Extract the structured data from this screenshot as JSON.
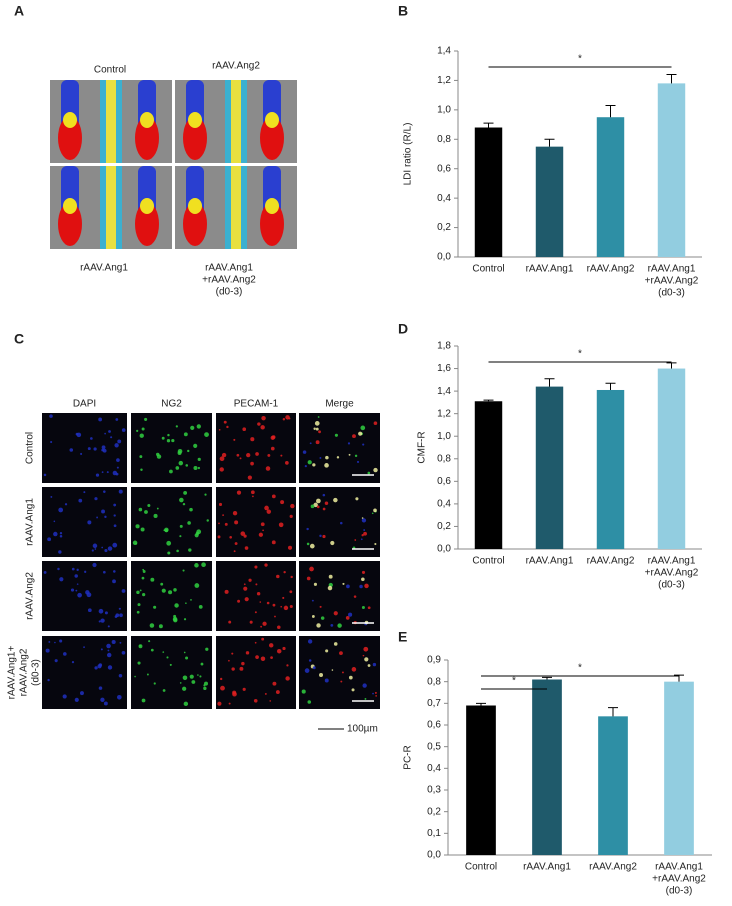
{
  "panel_a": {
    "panel": "A",
    "labels": [
      "Control",
      "rAAV.Ang2",
      "rAAV.Ang1",
      [
        "rAAV.Ang1",
        "+rAAV.Ang2",
        "(d0-3)"
      ]
    ]
  },
  "panel_c": {
    "panel": "C",
    "columns": [
      "DAPI",
      "NG2",
      "PECAM-1",
      "Merge"
    ],
    "rows": [
      "Control",
      "rAAV.Ang1",
      "rAAV.Ang2",
      [
        "rAAV.Ang1+",
        "rAAV.Ang2",
        "(d0-3)"
      ]
    ],
    "scale_bar": "100µm"
  },
  "chart_data": [
    {
      "type": "bar",
      "panel": "B",
      "ylabel": "LDI ratio (R/L)",
      "categories": [
        [
          "Control"
        ],
        [
          "rAAV.Ang1"
        ],
        [
          "rAAV.Ang2"
        ],
        [
          "rAAV.Ang1",
          "+rAAV.Ang2",
          "(d0-3)"
        ]
      ],
      "values": [
        0.88,
        0.75,
        0.95,
        1.18
      ],
      "errors": [
        0.03,
        0.05,
        0.08,
        0.06
      ],
      "colors": [
        "#000000",
        "#1f5a6b",
        "#2e8fa5",
        "#92cde0"
      ],
      "ylim": [
        0,
        1.4
      ],
      "yticks": [
        {
          "value": 0,
          "label": "0,0"
        },
        {
          "value": 0.2,
          "label": "0,2"
        },
        {
          "value": 0.4,
          "label": "0,4"
        },
        {
          "value": 0.6,
          "label": "0,6"
        },
        {
          "value": 0.8,
          "label": "0,8"
        },
        {
          "value": 1.0,
          "label": "1,0"
        },
        {
          "value": 1.2,
          "label": "1,2"
        },
        {
          "value": 1.4,
          "label": "1,4"
        }
      ],
      "significance": [
        {
          "label": "*",
          "span": [
            0,
            3
          ]
        }
      ]
    },
    {
      "type": "bar",
      "panel": "D",
      "ylabel": "CMF-R",
      "categories": [
        [
          "Control"
        ],
        [
          "rAAV.Ang1"
        ],
        [
          "rAAV.Ang2"
        ],
        [
          "rAAV.Ang1",
          "+rAAV.Ang2",
          "(d0-3)"
        ]
      ],
      "values": [
        1.31,
        1.44,
        1.41,
        1.6
      ],
      "errors": [
        0.01,
        0.07,
        0.06,
        0.05
      ],
      "colors": [
        "#000000",
        "#1f5a6b",
        "#2e8fa5",
        "#92cde0"
      ],
      "ylim": [
        0,
        1.8
      ],
      "yticks": [
        {
          "value": 0,
          "label": "0,0"
        },
        {
          "value": 0.2,
          "label": "0,2"
        },
        {
          "value": 0.4,
          "label": "0,4"
        },
        {
          "value": 0.6,
          "label": "0,6"
        },
        {
          "value": 0.8,
          "label": "0,8"
        },
        {
          "value": 1.0,
          "label": "1,0"
        },
        {
          "value": 1.2,
          "label": "1,2"
        },
        {
          "value": 1.4,
          "label": "1,4"
        },
        {
          "value": 1.6,
          "label": "1,6"
        },
        {
          "value": 1.8,
          "label": "1,8"
        }
      ],
      "significance": [
        {
          "label": "*",
          "span": [
            0,
            3
          ]
        }
      ]
    },
    {
      "type": "bar",
      "panel": "E",
      "ylabel": "PC-R",
      "categories": [
        [
          "Control"
        ],
        [
          "rAAV.Ang1"
        ],
        [
          "rAAV.Ang2"
        ],
        [
          "rAAV.Ang1",
          "+rAAV.Ang2",
          "(d0-3)"
        ]
      ],
      "values": [
        0.69,
        0.81,
        0.64,
        0.8
      ],
      "errors": [
        0.01,
        0.01,
        0.04,
        0.03
      ],
      "colors": [
        "#000000",
        "#1f5a6b",
        "#2e8fa5",
        "#92cde0"
      ],
      "ylim": [
        0,
        0.9
      ],
      "yticks": [
        {
          "value": 0,
          "label": "0,0"
        },
        {
          "value": 0.1,
          "label": "0,1"
        },
        {
          "value": 0.2,
          "label": "0,2"
        },
        {
          "value": 0.3,
          "label": "0,3"
        },
        {
          "value": 0.4,
          "label": "0,4"
        },
        {
          "value": 0.5,
          "label": "0,5"
        },
        {
          "value": 0.6,
          "label": "0,6"
        },
        {
          "value": 0.7,
          "label": "0,7"
        },
        {
          "value": 0.8,
          "label": "0,8"
        },
        {
          "value": 0.9,
          "label": "0,9"
        }
      ],
      "significance": [
        {
          "label": "*",
          "span": [
            0,
            3
          ]
        },
        {
          "label": "*",
          "span": [
            0,
            1
          ]
        }
      ]
    }
  ]
}
